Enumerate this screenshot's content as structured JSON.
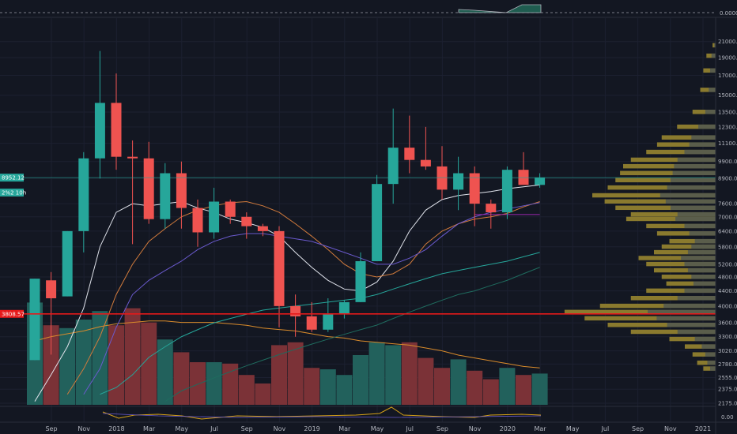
{
  "chart_data": {
    "type": "candlestick",
    "y_scale": "log",
    "ylim": [
      2175,
      23500
    ],
    "x_labels": [
      "Sep",
      "Nov",
      "2018",
      "Mar",
      "May",
      "Jul",
      "Sep",
      "Nov",
      "2019",
      "Mar",
      "May",
      "Jul",
      "Sep",
      "Nov",
      "2020",
      "Mar",
      "May",
      "Jul",
      "Sep",
      "Nov",
      "2021"
    ],
    "y_ticks": [
      "21000.00",
      "19000.00",
      "17000.00",
      "15000.00",
      "13500.00",
      "12300.00",
      "11100.00",
      "9900.00",
      "8900.00",
      "7600.00",
      "7000.00",
      "6400.00",
      "5800.00",
      "5200.00",
      "4800.00",
      "4400.00",
      "4000.00",
      "3600.00",
      "3300.00",
      "3020.00",
      "2780.00",
      "2555.00",
      "2375.00",
      "2175.00"
    ],
    "top_axis_label": "0.0000",
    "bottom_axis_label": "0.00",
    "horizontal_line": {
      "value": 3808.57,
      "label": "3808.57",
      "color": "#e5191a"
    },
    "price_badges": [
      {
        "label": "8952.12",
        "value": 8952.12,
        "color": "#26a69a"
      },
      {
        "label": "2%2 10h",
        "value": 8150,
        "color": "#26a69a"
      }
    ],
    "candles": [
      {
        "open": 2850,
        "high": 4750,
        "low": 2850,
        "close": 4750
      },
      {
        "open": 4700,
        "high": 4950,
        "low": 2950,
        "close": 4200
      },
      {
        "open": 4250,
        "high": 6400,
        "low": 4250,
        "close": 6400
      },
      {
        "open": 6400,
        "high": 10500,
        "low": 5600,
        "close": 10100
      },
      {
        "open": 10100,
        "high": 19800,
        "low": 8900,
        "close": 14300
      },
      {
        "open": 14300,
        "high": 17200,
        "low": 9400,
        "close": 10200
      },
      {
        "open": 10200,
        "high": 11300,
        "low": 5900,
        "close": 10100
      },
      {
        "open": 10100,
        "high": 11200,
        "low": 6700,
        "close": 6900
      },
      {
        "open": 6900,
        "high": 9800,
        "low": 6500,
        "close": 9200
      },
      {
        "open": 9200,
        "high": 9900,
        "low": 6500,
        "close": 7400
      },
      {
        "open": 7400,
        "high": 7800,
        "low": 5800,
        "close": 6350
      },
      {
        "open": 6350,
        "high": 8400,
        "low": 6100,
        "close": 7700
      },
      {
        "open": 7700,
        "high": 7800,
        "low": 6700,
        "close": 7000
      },
      {
        "open": 7000,
        "high": 7200,
        "low": 6100,
        "close": 6600
      },
      {
        "open": 6600,
        "high": 6700,
        "low": 6200,
        "close": 6400
      },
      {
        "open": 6400,
        "high": 6600,
        "low": 3500,
        "close": 4000
      },
      {
        "open": 4000,
        "high": 4300,
        "low": 3300,
        "close": 3750
      },
      {
        "open": 3750,
        "high": 4100,
        "low": 3400,
        "close": 3450
      },
      {
        "open": 3450,
        "high": 4200,
        "low": 3400,
        "close": 3800
      },
      {
        "open": 3800,
        "high": 4150,
        "low": 3700,
        "close": 4100
      },
      {
        "open": 4100,
        "high": 5600,
        "low": 4100,
        "close": 5300
      },
      {
        "open": 5300,
        "high": 9100,
        "low": 5300,
        "close": 8600
      },
      {
        "open": 8600,
        "high": 13800,
        "low": 7600,
        "close": 10800
      },
      {
        "open": 10800,
        "high": 13200,
        "low": 9200,
        "close": 10000
      },
      {
        "open": 10000,
        "high": 12300,
        "low": 9400,
        "close": 9600
      },
      {
        "open": 9600,
        "high": 10900,
        "low": 7800,
        "close": 8300
      },
      {
        "open": 8300,
        "high": 10200,
        "low": 7300,
        "close": 9200
      },
      {
        "open": 9200,
        "high": 9600,
        "low": 6600,
        "close": 7600
      },
      {
        "open": 7600,
        "high": 7800,
        "low": 6500,
        "close": 7200
      },
      {
        "open": 7200,
        "high": 9600,
        "low": 6900,
        "close": 9400
      },
      {
        "open": 9400,
        "high": 10500,
        "low": 8600,
        "close": 8550
      },
      {
        "open": 8550,
        "high": 9200,
        "low": 8400,
        "close": 8950
      }
    ],
    "volume": [
      0.72,
      0.56,
      0.54,
      0.6,
      0.66,
      0.56,
      0.68,
      0.58,
      0.46,
      0.37,
      0.3,
      0.3,
      0.29,
      0.21,
      0.15,
      0.42,
      0.44,
      0.26,
      0.25,
      0.21,
      0.35,
      0.44,
      0.42,
      0.44,
      0.33,
      0.26,
      0.32,
      0.24,
      0.18,
      0.26,
      0.21,
      0.22
    ],
    "moving_averages": [
      {
        "color": "#e0e3eb",
        "values": [
          2200,
          2600,
          3100,
          3950,
          5800,
          7200,
          7600,
          7500,
          7600,
          7700,
          7400,
          7200,
          6900,
          6750,
          6550,
          6200,
          5600,
          5100,
          4700,
          4450,
          4400,
          4650,
          5300,
          6400,
          7300,
          7800,
          8000,
          8100,
          8200,
          8350,
          8450,
          8550
        ]
      },
      {
        "color": "#d27b3c",
        "values": [
          null,
          null,
          2300,
          2700,
          3300,
          4300,
          5200,
          6000,
          6500,
          7000,
          7300,
          7500,
          7650,
          7700,
          7500,
          7200,
          6700,
          6200,
          5700,
          5200,
          4900,
          4800,
          4900,
          5200,
          5900,
          6400,
          6700,
          6900,
          7000,
          7150,
          7450,
          7700
        ]
      },
      {
        "color": "#6a5acd",
        "values": [
          null,
          null,
          null,
          2300,
          2700,
          3500,
          4300,
          4700,
          5000,
          5300,
          5700,
          6000,
          6200,
          6300,
          6300,
          6200,
          6100,
          6000,
          5800,
          5600,
          5400,
          5200,
          5200,
          5400,
          5700,
          6200,
          6700,
          7000,
          7200,
          7350,
          7500,
          7650
        ]
      },
      {
        "color": "#9c27b0",
        "values": [
          null,
          null,
          null,
          null,
          null,
          null,
          null,
          null,
          null,
          null,
          null,
          null,
          null,
          null,
          null,
          null,
          null,
          null,
          null,
          null,
          null,
          null,
          null,
          null,
          null,
          null,
          null,
          7100,
          7100,
          7100,
          7100,
          7100
        ]
      },
      {
        "color": "#26a69a",
        "values": [
          null,
          null,
          null,
          null,
          2300,
          2400,
          2600,
          2900,
          3100,
          3300,
          3450,
          3600,
          3700,
          3800,
          3900,
          3950,
          4000,
          4050,
          4100,
          4150,
          4200,
          4300,
          4450,
          4600,
          4750,
          4900,
          5000,
          5100,
          5200,
          5300,
          5450,
          5600
        ]
      },
      {
        "color": "#1f6b5e",
        "values": [
          null,
          null,
          null,
          null,
          null,
          null,
          null,
          null,
          2200,
          2350,
          2450,
          2550,
          2650,
          2750,
          2850,
          2950,
          3050,
          3150,
          3250,
          3350,
          3450,
          3550,
          3700,
          3850,
          4000,
          4150,
          4300,
          4400,
          4550,
          4700,
          4900,
          5100
        ]
      }
    ],
    "volume_ma": [
      0.45,
      0.48,
      0.5,
      0.52,
      0.55,
      0.57,
      0.58,
      0.59,
      0.59,
      0.58,
      0.58,
      0.58,
      0.57,
      0.56,
      0.54,
      0.53,
      0.52,
      0.5,
      0.48,
      0.47,
      0.45,
      0.44,
      0.43,
      0.42,
      0.4,
      0.38,
      0.35,
      0.33,
      0.31,
      0.29,
      0.27,
      0.26
    ],
    "volume_profile": [
      [
        20500,
        0.02
      ],
      [
        19200,
        0.06
      ],
      [
        17500,
        0.08
      ],
      [
        15500,
        0.1
      ],
      [
        13500,
        0.15
      ],
      [
        12300,
        0.25
      ],
      [
        11500,
        0.35
      ],
      [
        11000,
        0.38
      ],
      [
        10500,
        0.45
      ],
      [
        10000,
        0.55
      ],
      [
        9600,
        0.6
      ],
      [
        9200,
        0.62
      ],
      [
        8800,
        0.65
      ],
      [
        8400,
        0.7
      ],
      [
        8000,
        0.8
      ],
      [
        7700,
        0.72
      ],
      [
        7400,
        0.65
      ],
      [
        7100,
        0.55
      ],
      [
        6900,
        0.58
      ],
      [
        6600,
        0.45
      ],
      [
        6300,
        0.38
      ],
      [
        6000,
        0.3
      ],
      [
        5800,
        0.35
      ],
      [
        5600,
        0.4
      ],
      [
        5400,
        0.5
      ],
      [
        5200,
        0.45
      ],
      [
        5000,
        0.4
      ],
      [
        4800,
        0.35
      ],
      [
        4600,
        0.32
      ],
      [
        4400,
        0.45
      ],
      [
        4200,
        0.55
      ],
      [
        4000,
        0.75
      ],
      [
        3850,
        0.98
      ],
      [
        3700,
        0.85
      ],
      [
        3550,
        0.7
      ],
      [
        3400,
        0.55
      ],
      [
        3250,
        0.3
      ],
      [
        3100,
        0.2
      ],
      [
        2950,
        0.15
      ],
      [
        2800,
        0.12
      ],
      [
        2700,
        0.08
      ]
    ]
  }
}
